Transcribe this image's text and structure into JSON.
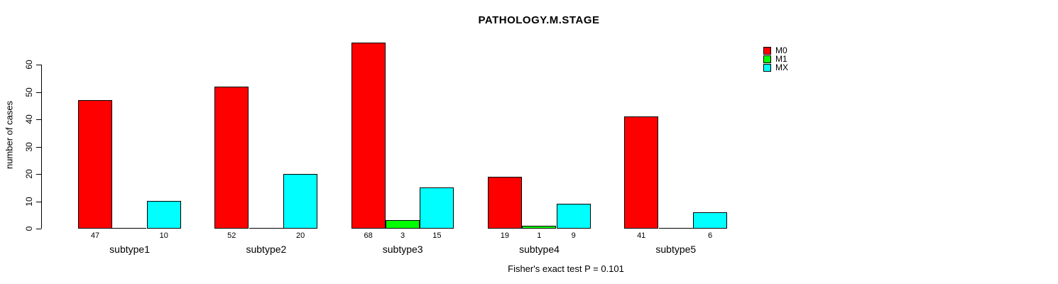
{
  "title": "PATHOLOGY.M.STAGE",
  "footer": "Fisher's exact test P = 0.101",
  "colors": {
    "M0": "#FF0000",
    "M1": "#00FF00",
    "MX": "#00FFFF",
    "axis": "#000000",
    "background": "#FFFFFF"
  },
  "chart_data": {
    "type": "bar",
    "title": "PATHOLOGY.M.STAGE",
    "xlabel": "",
    "ylabel": "number of cases",
    "categories": [
      "subtype1",
      "subtype2",
      "subtype3",
      "subtype4",
      "subtype5"
    ],
    "series": [
      {
        "name": "M0",
        "color": "#FF0000",
        "values": [
          47,
          52,
          68,
          19,
          41
        ]
      },
      {
        "name": "M1",
        "color": "#00FF00",
        "values": [
          0,
          0,
          3,
          1,
          0
        ]
      },
      {
        "name": "MX",
        "color": "#00FFFF",
        "values": [
          10,
          20,
          15,
          9,
          6
        ]
      }
    ],
    "bar_value_labels": {
      "subtype1": [
        "47",
        "",
        "10"
      ],
      "subtype2": [
        "52",
        "",
        "20"
      ],
      "subtype3": [
        "68",
        "3",
        "15"
      ],
      "subtype4": [
        "19",
        "1",
        "9"
      ],
      "subtype5": [
        "41",
        "",
        "6"
      ]
    },
    "ylim": [
      0,
      60
    ],
    "yticks": [
      0,
      10,
      20,
      30,
      40,
      50,
      60
    ],
    "grid": false,
    "legend_position": "top-right",
    "legend_entries": [
      "M0",
      "M1",
      "MX"
    ],
    "annotation": "Fisher's exact test P = 0.101"
  }
}
